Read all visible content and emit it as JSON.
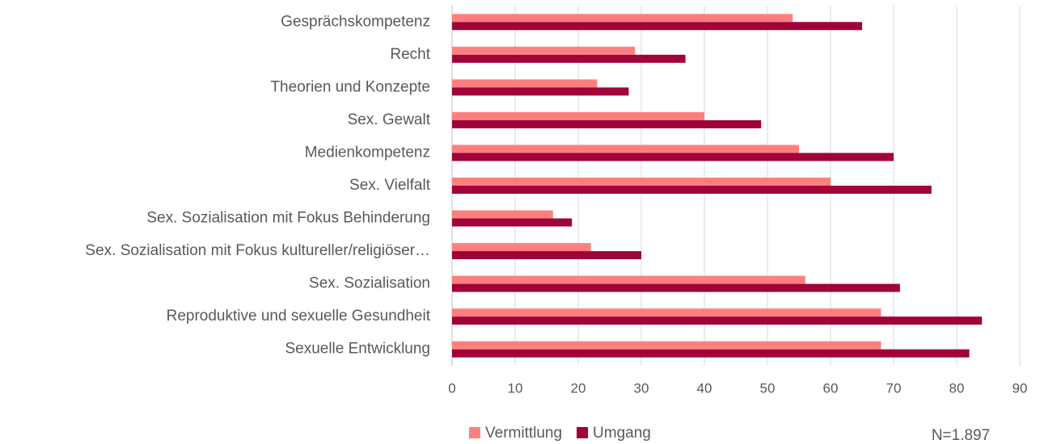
{
  "chart_data": {
    "type": "hbar",
    "categories": [
      "Gesprächskompetenz",
      "Recht",
      "Theorien und Konzepte",
      "Sex. Gewalt",
      "Medienkompetenz",
      "Sex. Vielfalt",
      "Sex. Sozialisation mit Fokus Behinderung",
      "Sex. Sozialisation mit Fokus kultureller/religiöser…",
      "Sex. Sozialisation",
      "Reproduktive und sexuelle Gesundheit",
      "Sexuelle Entwicklung"
    ],
    "series": [
      {
        "name": "Vermittlung",
        "color": "#ff7f7f",
        "values": [
          54,
          29,
          23,
          40,
          55,
          60,
          16,
          22,
          56,
          68,
          68
        ]
      },
      {
        "name": "Umgang",
        "color": "#a0023a",
        "values": [
          65,
          37,
          28,
          49,
          70,
          76,
          19,
          30,
          71,
          84,
          82
        ]
      }
    ],
    "xlim": [
      0,
      90
    ],
    "xticks": [
      0,
      10,
      20,
      30,
      40,
      50,
      60,
      70,
      80,
      90
    ],
    "grid": true,
    "legend": "bottom",
    "annotation": "N=1.897"
  }
}
